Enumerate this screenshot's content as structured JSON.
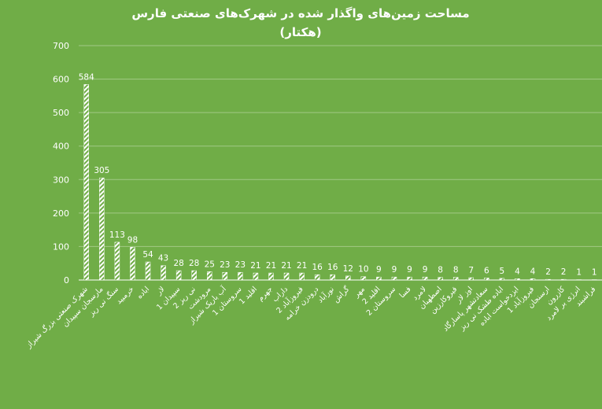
{
  "chart_data": {
    "type": "bar",
    "title": "مساحت زمین‌های واگذار شده در شهرک‌های صنعتی فارس",
    "subtitle": "(هکتار)",
    "categories": [
      "شهرک صنعتی بزرگ شیراز",
      "مارسجان سپیدان",
      "سنگ نی ریز",
      "خرمبید",
      "اباده",
      "لار",
      "سپیدان 1",
      "نی ریز 2",
      "مرودشت",
      "آب باریک شیراز",
      "سروستان 1",
      "اقلید 1",
      "جهرم",
      "داراب",
      "فیروزآباد 2",
      "درودزن خرامه",
      "نورآباد",
      "گراش",
      "مهر",
      "اقلید 2",
      "سروستان 2",
      "فسا",
      "لامرد",
      "اصطهبان",
      "قیروکارزین",
      "اوز لار",
      "سعادتشهر پاسارگاد",
      "اباده طشک نی ریز",
      "ایزدخواست اباده",
      "فیروزآباد 1",
      "ارسنجان",
      "کازرون",
      "انرژی بر لامرد",
      "فراشبند"
    ],
    "values": [
      584,
      305,
      113,
      98,
      54,
      43,
      28,
      28,
      25,
      23,
      23,
      21,
      21,
      21,
      21,
      16,
      16,
      12,
      10,
      9,
      9,
      9,
      9,
      8,
      8,
      7,
      6,
      5,
      4,
      4,
      2,
      2,
      1,
      1
    ],
    "color": "#ffffff",
    "ylim": [
      0,
      700
    ],
    "yticks": [
      0,
      100,
      200,
      300,
      400,
      500,
      600,
      700
    ],
    "grid": true
  }
}
